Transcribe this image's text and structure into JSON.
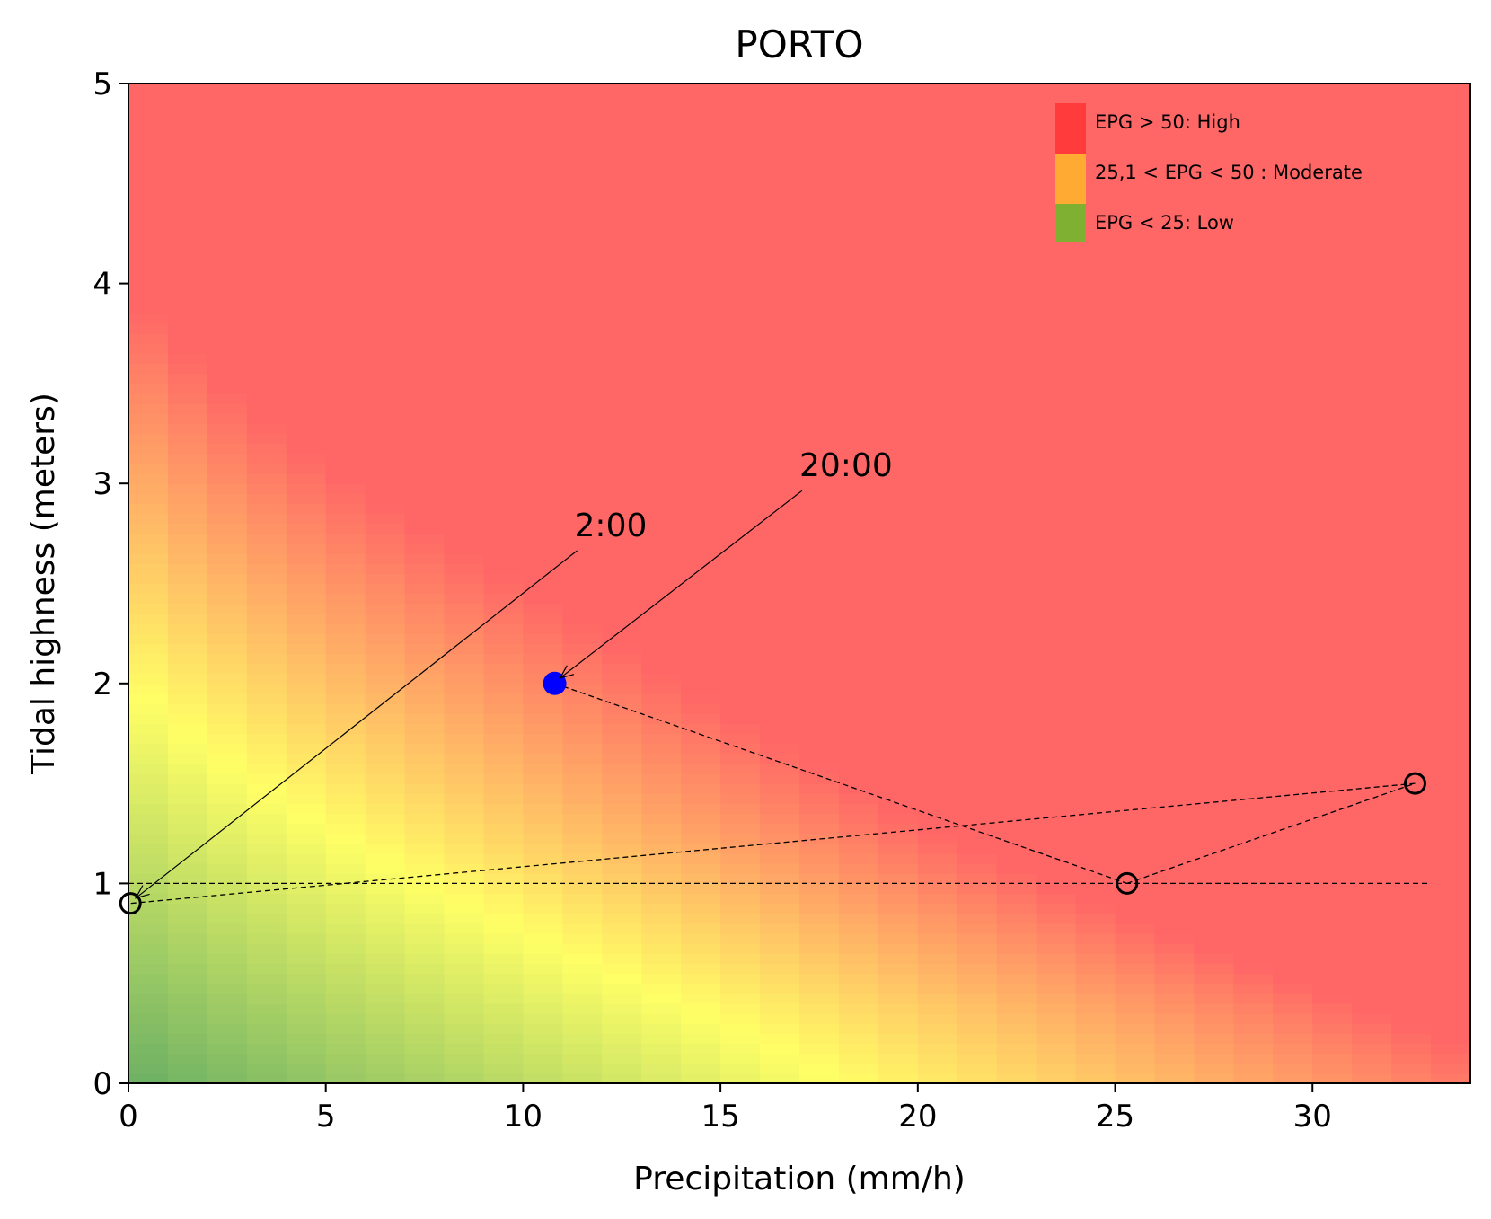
{
  "chart_data": {
    "type": "heatmap",
    "title": "PORTO",
    "xlabel": "Precipitation (mm/h)",
    "ylabel": "Tidal highness (meters)",
    "xlim": [
      0,
      34
    ],
    "ylim": [
      0,
      5
    ],
    "x_ticks": [
      "0",
      "5",
      "10",
      "15",
      "20",
      "25",
      "30"
    ],
    "y_ticks": [
      "0",
      "1",
      "2",
      "3",
      "4",
      "5"
    ],
    "x_tick_values": [
      0,
      5,
      10,
      15,
      20,
      25,
      30
    ],
    "y_tick_values": [
      0,
      1,
      2,
      3,
      4,
      5
    ],
    "grid": false,
    "heatmap": {
      "x_cell_width": 1,
      "y_cell_height": 0.05,
      "colors": {
        "low": "#6aaf64",
        "moderate": "#ffff66",
        "high": "#ff6666"
      }
    },
    "legend": {
      "placement": "top-right",
      "entries": [
        {
          "label": "EPG > 50: High",
          "color": "#ff3b3b"
        },
        {
          "label": "25,1 < EPG < 50 : Moderate",
          "color": "#ffaa33"
        },
        {
          "label": "EPG < 25: Low",
          "color": "#7fb032"
        }
      ]
    },
    "path": {
      "points": [
        {
          "x": 10.8,
          "y": 2.0,
          "highlight": true
        },
        {
          "x": 25.3,
          "y": 1.0
        },
        {
          "x": 32.6,
          "y": 1.5
        },
        {
          "x": 0.05,
          "y": 0.9
        }
      ],
      "style": "dashed"
    },
    "reference_line": {
      "y": 1.0,
      "x_from": 0,
      "x_to": 33
    },
    "annotations": [
      {
        "text": "2:00",
        "xy": [
          0.05,
          0.9
        ],
        "xytext": [
          11.3,
          2.7
        ]
      },
      {
        "text": "20:00",
        "xy": [
          10.8,
          2.0
        ],
        "xytext": [
          17.0,
          3.0
        ]
      }
    ],
    "highlight_color": "#0000ff"
  }
}
